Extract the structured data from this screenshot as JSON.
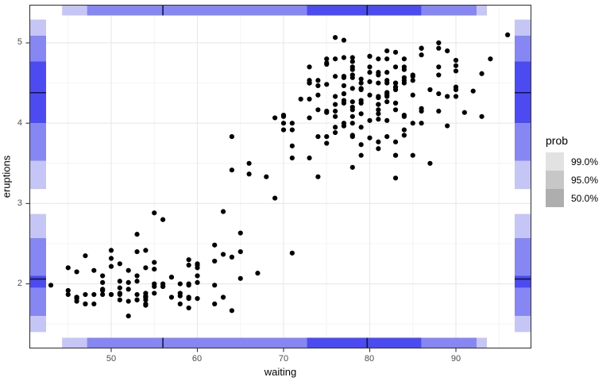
{
  "chart_data": {
    "type": "scatter",
    "title": "",
    "xlabel": "waiting",
    "ylabel": "eruptions",
    "xlim": [
      40.5,
      98.8
    ],
    "ylim": [
      1.2,
      5.47
    ],
    "grid": "on",
    "x_ticks": [
      {
        "label": "50",
        "value": 50
      },
      {
        "label": "60",
        "value": 60
      },
      {
        "label": "70",
        "value": 70
      },
      {
        "label": "80",
        "value": 80
      },
      {
        "label": "90",
        "value": 90
      }
    ],
    "y_ticks": [
      {
        "label": "5",
        "value": 5
      },
      {
        "label": "4",
        "value": 4
      },
      {
        "label": "3",
        "value": 3
      },
      {
        "label": "2",
        "value": 2
      }
    ],
    "x_minor_ticks": [
      45,
      55,
      65,
      75,
      85,
      95
    ],
    "y_minor_ticks": [
      1.5,
      2.5,
      3.5,
      4.5
    ],
    "marginal_intervals": {
      "legend_probs": [
        "99.0%",
        "95.0%",
        "50.0%"
      ],
      "waiting": {
        "segments": [
          {
            "prob": "99.0%",
            "from": 44.3,
            "to": 47.2
          },
          {
            "prob": "95.0%",
            "from": 47.2,
            "to": 72.7
          },
          {
            "prob": "50.0%",
            "from": 72.7,
            "to": 86.0
          },
          {
            "prob": "95.0%",
            "from": 86.0,
            "to": 92.4
          },
          {
            "prob": "99.0%",
            "from": 92.4,
            "to": 93.6
          }
        ],
        "modes": [
          56.0,
          79.7
        ]
      },
      "eruptions": {
        "segments": [
          {
            "prob": "99.0%",
            "from": 5.09,
            "to": 5.29
          },
          {
            "prob": "95.0%",
            "from": 4.77,
            "to": 5.09
          },
          {
            "prob": "50.0%",
            "from": 4.0,
            "to": 4.77
          },
          {
            "prob": "95.0%",
            "from": 3.53,
            "to": 4.0
          },
          {
            "prob": "99.0%",
            "from": 3.18,
            "to": 3.53
          },
          {
            "prob": "99.0%",
            "from": 2.57,
            "to": 2.87
          },
          {
            "prob": "95.0%",
            "from": 2.1,
            "to": 2.57
          },
          {
            "prob": "50.0%",
            "from": 1.95,
            "to": 2.1
          },
          {
            "prob": "95.0%",
            "from": 1.6,
            "to": 1.95
          },
          {
            "prob": "99.0%",
            "from": 1.4,
            "to": 1.6
          }
        ],
        "modes": [
          4.38,
          2.06
        ]
      }
    },
    "points": [
      [
        79,
        3.6
      ],
      [
        54,
        1.8
      ],
      [
        74,
        3.333
      ],
      [
        62,
        2.283
      ],
      [
        85,
        4.533
      ],
      [
        55,
        2.883
      ],
      [
        88,
        4.7
      ],
      [
        85,
        3.6
      ],
      [
        51,
        1.95
      ],
      [
        85,
        4.35
      ],
      [
        54,
        1.833
      ],
      [
        84,
        3.917
      ],
      [
        78,
        4.2
      ],
      [
        47,
        1.75
      ],
      [
        83,
        4.7
      ],
      [
        52,
        2.167
      ],
      [
        62,
        1.75
      ],
      [
        84,
        4.8
      ],
      [
        52,
        1.6
      ],
      [
        79,
        4.25
      ],
      [
        51,
        1.8
      ],
      [
        47,
        1.75
      ],
      [
        78,
        3.45
      ],
      [
        69,
        3.067
      ],
      [
        74,
        4.533
      ],
      [
        83,
        3.6
      ],
      [
        55,
        1.967
      ],
      [
        76,
        4.083
      ],
      [
        78,
        3.85
      ],
      [
        79,
        4.433
      ],
      [
        73,
        4.3
      ],
      [
        77,
        4.467
      ],
      [
        66,
        3.367
      ],
      [
        80,
        4.033
      ],
      [
        74,
        3.833
      ],
      [
        52,
        2.017
      ],
      [
        48,
        1.867
      ],
      [
        80,
        4.833
      ],
      [
        59,
        1.833
      ],
      [
        90,
        4.783
      ],
      [
        80,
        4.35
      ],
      [
        58,
        1.883
      ],
      [
        84,
        4.567
      ],
      [
        58,
        1.75
      ],
      [
        73,
        4.533
      ],
      [
        83,
        3.317
      ],
      [
        64,
        3.833
      ],
      [
        53,
        2.1
      ],
      [
        82,
        4.633
      ],
      [
        59,
        2
      ],
      [
        75,
        4.8
      ],
      [
        90,
        4.716
      ],
      [
        54,
        1.833
      ],
      [
        80,
        4.833
      ],
      [
        54,
        1.733
      ],
      [
        83,
        4.883
      ],
      [
        71,
        3.717
      ],
      [
        64,
        1.667
      ],
      [
        77,
        4.567
      ],
      [
        81,
        4.317
      ],
      [
        59,
        2.233
      ],
      [
        84,
        4.5
      ],
      [
        48,
        1.75
      ],
      [
        82,
        4.8
      ],
      [
        60,
        1.817
      ],
      [
        92,
        4.4
      ],
      [
        78,
        4.167
      ],
      [
        78,
        4.7
      ],
      [
        65,
        2.067
      ],
      [
        73,
        4.7
      ],
      [
        82,
        4.033
      ],
      [
        56,
        1.967
      ],
      [
        79,
        4.5
      ],
      [
        71,
        4
      ],
      [
        62,
        1.983
      ],
      [
        76,
        5.067
      ],
      [
        60,
        2.017
      ],
      [
        78,
        4.567
      ],
      [
        76,
        3.883
      ],
      [
        83,
        3.6
      ],
      [
        75,
        4.133
      ],
      [
        82,
        4.333
      ],
      [
        70,
        4.1
      ],
      [
        65,
        2.633
      ],
      [
        73,
        4.067
      ],
      [
        88,
        4.933
      ],
      [
        76,
        3.95
      ],
      [
        80,
        4.517
      ],
      [
        48,
        2.167
      ],
      [
        86,
        4
      ],
      [
        60,
        2.2
      ],
      [
        90,
        4.333
      ],
      [
        50,
        1.867
      ],
      [
        78,
        4.817
      ],
      [
        63,
        1.833
      ],
      [
        72,
        4.3
      ],
      [
        84,
        4.667
      ],
      [
        75,
        3.75
      ],
      [
        51,
        1.867
      ],
      [
        82,
        4.9
      ],
      [
        62,
        2.483
      ],
      [
        88,
        4.367
      ],
      [
        49,
        2.1
      ],
      [
        83,
        4.5
      ],
      [
        81,
        4.05
      ],
      [
        47,
        1.867
      ],
      [
        84,
        4.7
      ],
      [
        52,
        1.783
      ],
      [
        86,
        4.85
      ],
      [
        81,
        3.683
      ],
      [
        75,
        4.733
      ],
      [
        59,
        2.3
      ],
      [
        89,
        4.9
      ],
      [
        79,
        4.417
      ],
      [
        59,
        1.7
      ],
      [
        81,
        4.633
      ],
      [
        50,
        2.317
      ],
      [
        85,
        4.6
      ],
      [
        59,
        1.817
      ],
      [
        87,
        4.417
      ],
      [
        53,
        2.617
      ],
      [
        69,
        4.067
      ],
      [
        77,
        4.25
      ],
      [
        56,
        1.967
      ],
      [
        88,
        4.6
      ],
      [
        81,
        3.767
      ],
      [
        45,
        1.917
      ],
      [
        82,
        4.5
      ],
      [
        55,
        2.267
      ],
      [
        90,
        4.65
      ],
      [
        45,
        1.867
      ],
      [
        83,
        4.167
      ],
      [
        56,
        2.8
      ],
      [
        89,
        4.333
      ],
      [
        46,
        1.833
      ],
      [
        82,
        4.383
      ],
      [
        51,
        1.883
      ],
      [
        86,
        4.933
      ],
      [
        53,
        2.033
      ],
      [
        79,
        3.733
      ],
      [
        81,
        4.233
      ],
      [
        60,
        2.233
      ],
      [
        82,
        4.533
      ],
      [
        77,
        4.817
      ],
      [
        76,
        4.333
      ],
      [
        59,
        1.983
      ],
      [
        80,
        4.633
      ],
      [
        49,
        2.017
      ],
      [
        96,
        5.1
      ],
      [
        53,
        1.8
      ],
      [
        77,
        5.033
      ],
      [
        77,
        4
      ],
      [
        65,
        2.4
      ],
      [
        81,
        4.6
      ],
      [
        71,
        3.567
      ],
      [
        70,
        4
      ],
      [
        81,
        4.5
      ],
      [
        93,
        4.083
      ],
      [
        53,
        1.8
      ],
      [
        89,
        3.967
      ],
      [
        45,
        2.2
      ],
      [
        86,
        4.15
      ],
      [
        58,
        2
      ],
      [
        78,
        3.833
      ],
      [
        66,
        3.5
      ],
      [
        76,
        4.583
      ],
      [
        63,
        2.367
      ],
      [
        88,
        5
      ],
      [
        52,
        1.933
      ],
      [
        93,
        4.617
      ],
      [
        49,
        1.917
      ],
      [
        57,
        2.083
      ],
      [
        77,
        4.583
      ],
      [
        68,
        3.333
      ],
      [
        81,
        4.167
      ],
      [
        81,
        4.333
      ],
      [
        73,
        4.5
      ],
      [
        50,
        2.417
      ],
      [
        85,
        4
      ],
      [
        74,
        4.167
      ],
      [
        55,
        1.883
      ],
      [
        77,
        4.583
      ],
      [
        83,
        4.25
      ],
      [
        83,
        3.767
      ],
      [
        51,
        2.033
      ],
      [
        78,
        4.433
      ],
      [
        84,
        4.083
      ],
      [
        46,
        1.833
      ],
      [
        83,
        4.417
      ],
      [
        55,
        2.183
      ],
      [
        81,
        4.8
      ],
      [
        57,
        1.833
      ],
      [
        76,
        4.8
      ],
      [
        84,
        4.1
      ],
      [
        77,
        3.966
      ],
      [
        81,
        4.233
      ],
      [
        87,
        3.5
      ],
      [
        77,
        4.366
      ],
      [
        51,
        2.25
      ],
      [
        78,
        4.667
      ],
      [
        60,
        2.1
      ],
      [
        82,
        4.35
      ],
      [
        91,
        4.133
      ],
      [
        53,
        1.867
      ],
      [
        78,
        4.6
      ],
      [
        46,
        1.783
      ],
      [
        77,
        4.367
      ],
      [
        84,
        3.85
      ],
      [
        49,
        1.933
      ],
      [
        83,
        4.5
      ],
      [
        71,
        2.383
      ],
      [
        80,
        4.7
      ],
      [
        49,
        1.867
      ],
      [
        75,
        3.833
      ],
      [
        64,
        3.417
      ],
      [
        76,
        4.233
      ],
      [
        53,
        2.4
      ],
      [
        94,
        4.8
      ],
      [
        55,
        2
      ],
      [
        76,
        4.15
      ],
      [
        50,
        1.867
      ],
      [
        82,
        4.267
      ],
      [
        54,
        1.75
      ],
      [
        75,
        4.483
      ],
      [
        78,
        4
      ],
      [
        79,
        4.117
      ],
      [
        78,
        4.083
      ],
      [
        78,
        4.267
      ],
      [
        70,
        3.917
      ],
      [
        79,
        4.55
      ],
      [
        70,
        4.083
      ],
      [
        54,
        2.417
      ],
      [
        86,
        4.183
      ],
      [
        50,
        2.217
      ],
      [
        90,
        4.45
      ],
      [
        54,
        1.883
      ],
      [
        54,
        1.85
      ],
      [
        77,
        4.283
      ],
      [
        79,
        3.95
      ],
      [
        64,
        2.333
      ],
      [
        75,
        4.15
      ],
      [
        47,
        2.35
      ],
      [
        86,
        4.933
      ],
      [
        63,
        2.9
      ],
      [
        85,
        4.583
      ],
      [
        82,
        3.833
      ],
      [
        57,
        2.083
      ],
      [
        82,
        4.367
      ],
      [
        67,
        2.133
      ],
      [
        74,
        4.35
      ],
      [
        54,
        2.2
      ],
      [
        83,
        4.45
      ],
      [
        73,
        3.567
      ],
      [
        73,
        4.5
      ],
      [
        88,
        4.15
      ],
      [
        80,
        3.817
      ],
      [
        71,
        3.917
      ],
      [
        83,
        4.45
      ],
      [
        56,
        2
      ],
      [
        79,
        4.283
      ],
      [
        78,
        4.767
      ],
      [
        84,
        4.533
      ],
      [
        58,
        1.85
      ],
      [
        83,
        4.25
      ],
      [
        43,
        1.983
      ],
      [
        60,
        2.25
      ],
      [
        75,
        4.75
      ],
      [
        81,
        4.117
      ],
      [
        46,
        2.15
      ],
      [
        90,
        4.417
      ],
      [
        46,
        1.817
      ],
      [
        74,
        4.467
      ]
    ]
  },
  "legend": {
    "title": "prob",
    "entries": [
      {
        "label": "99.0%",
        "swatch": "#e2e2e2"
      },
      {
        "label": "95.0%",
        "swatch": "#c7c7c7"
      },
      {
        "label": "50.0%",
        "swatch": "#aeaeae"
      }
    ]
  },
  "colors": {
    "panel_border": "#383838",
    "grid_major": "#e9e9e9",
    "grid_minor": "#f4f4f4",
    "tick_mark": "#333333",
    "tick_text": "#4d4d4d",
    "point": "#000000",
    "mode_line": "#15153d",
    "interval_fill": {
      "99.0%": "#c6c6f6",
      "95.0%": "#8787f4",
      "50.0%": "#4b4bf1"
    }
  }
}
